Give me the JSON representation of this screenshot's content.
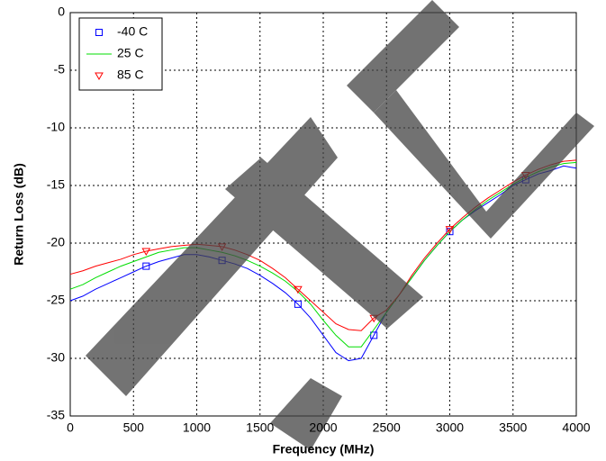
{
  "chart_data": {
    "type": "line",
    "x_label": "Frequency (MHz)",
    "y_label": "Return Loss (dB)",
    "x": [
      0,
      100,
      200,
      300,
      400,
      500,
      600,
      700,
      800,
      900,
      1000,
      1100,
      1200,
      1300,
      1400,
      1500,
      1600,
      1700,
      1800,
      1900,
      2000,
      2100,
      2200,
      2300,
      2400,
      2500,
      2600,
      2700,
      2800,
      2900,
      3000,
      3100,
      3200,
      3300,
      3400,
      3500,
      3600,
      3700,
      3800,
      3900,
      4000
    ],
    "series": [
      {
        "name": "-40 C",
        "color": "#0000ff",
        "marker": "square",
        "values": [
          -25,
          -24.6,
          -24,
          -23.5,
          -23,
          -22.5,
          -22,
          -21.6,
          -21.3,
          -21,
          -21,
          -21.2,
          -21.5,
          -21.8,
          -22.2,
          -22.8,
          -23.5,
          -24.3,
          -25.3,
          -26.5,
          -28,
          -29.5,
          -30.2,
          -30,
          -28,
          -26,
          -24.5,
          -23,
          -21.5,
          -20.2,
          -19,
          -18,
          -17.2,
          -16.5,
          -15.8,
          -15,
          -14.5,
          -14,
          -13.7,
          -13.3,
          -13.5
        ]
      },
      {
        "name": "25 C",
        "color": "#00dd00",
        "marker": "none",
        "values": [
          -24,
          -23.6,
          -23,
          -22.5,
          -22,
          -21.6,
          -21.2,
          -20.8,
          -20.6,
          -20.4,
          -20.4,
          -20.6,
          -20.8,
          -21.1,
          -21.5,
          -22,
          -22.6,
          -23.3,
          -24.2,
          -25.3,
          -26.7,
          -28,
          -29,
          -29,
          -27.5,
          -26,
          -24.5,
          -23,
          -21.5,
          -20.2,
          -19,
          -18,
          -17.1,
          -16.3,
          -15.6,
          -14.9,
          -14.3,
          -13.8,
          -13.4,
          -13.1,
          -13
        ]
      },
      {
        "name": "85 C",
        "color": "#ff0000",
        "marker": "triangle",
        "values": [
          -22.7,
          -22.4,
          -22,
          -21.7,
          -21.4,
          -21,
          -20.7,
          -20.5,
          -20.3,
          -20.2,
          -20.1,
          -20.2,
          -20.3,
          -20.6,
          -21,
          -21.5,
          -22.2,
          -23,
          -24,
          -25,
          -26,
          -27,
          -27.5,
          -27.6,
          -26.5,
          -25.8,
          -24.5,
          -22.8,
          -21.3,
          -20,
          -18.8,
          -17.8,
          -16.9,
          -16.1,
          -15.4,
          -14.7,
          -14.1,
          -13.6,
          -13.2,
          -12.9,
          -12.8
        ]
      }
    ],
    "xlim": [
      0,
      4000
    ],
    "xticks": [
      0,
      500,
      1000,
      1500,
      2000,
      2500,
      3000,
      3500,
      4000
    ],
    "ylim": [
      -35,
      0
    ],
    "yticks": [
      0,
      -5,
      -10,
      -15,
      -20,
      -25,
      -30,
      -35
    ],
    "grid": true,
    "legend": "upper left"
  }
}
